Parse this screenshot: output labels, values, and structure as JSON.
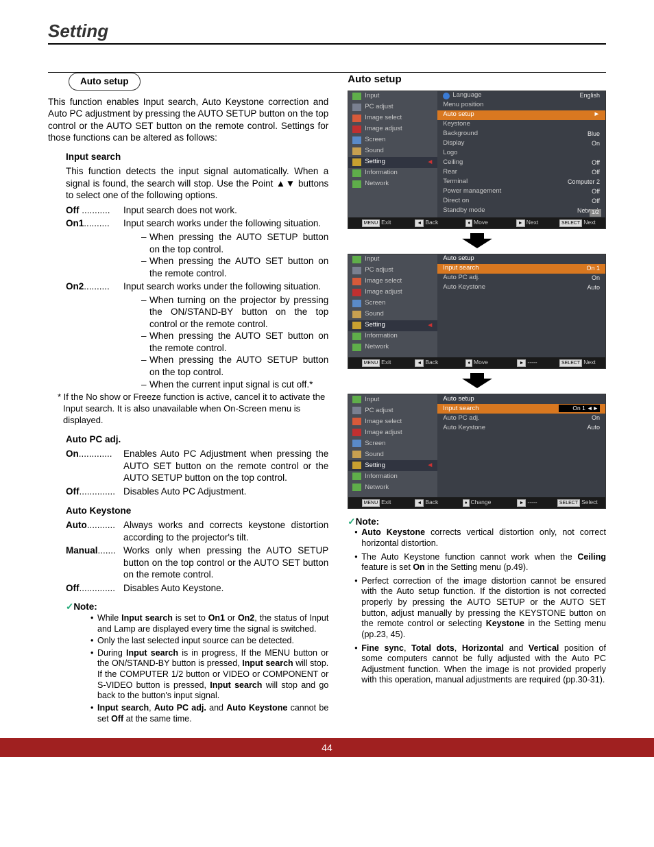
{
  "page": {
    "title": "Setting",
    "number": "44"
  },
  "left": {
    "pill": "Auto setup",
    "intro": "This function enables Input search, Auto Keystone correction and Auto PC adjustment by pressing the AUTO SETUP button on the top control or the AUTO SET button on the remote control. Settings for those functions can be altered as follows:",
    "input_search": {
      "head": "Input search",
      "desc": "This function detects the input signal automatically. When a signal is found, the search will stop. Use the Point ▲▼ buttons to select one of the following options.",
      "off_label": "Off",
      "off_dots": " ...........",
      "off_desc": "Input search does not work.",
      "on1_label": "On1",
      "on1_dots": "..........",
      "on1_desc": "Input search works under the following situation.",
      "on1_subs": [
        "When pressing the AUTO SETUP button on the top control.",
        "When pressing the AUTO SET button on the remote control."
      ],
      "on2_label": "On2",
      "on2_dots": "..........",
      "on2_desc": "Input search works under the following situation.",
      "on2_subs": [
        "When turning on the projector by pressing the ON/STAND-BY button on the top control or the remote control.",
        "When pressing the AUTO SET button on the remote control.",
        "When pressing the AUTO SETUP button on the top control.",
        " When the current input signal is cut off.*"
      ],
      "footnote": "* If the No show or Freeze function is active, cancel it to activate the Input search. It is also unavailable when On-Screen menu is displayed."
    },
    "autopc": {
      "head": "Auto PC adj.",
      "on_label": "On",
      "on_dots": ".............",
      "on_desc": "Enables Auto PC Adjustment when pressing the AUTO SET button on the remote control or the AUTO SETUP button on the top control.",
      "off_label": "Off",
      "off_dots": "..............",
      "off_desc": "Disables Auto PC Adjustment."
    },
    "autoks": {
      "head": "Auto Keystone",
      "auto_label": "Auto",
      "auto_dots": "...........",
      "auto_desc": "Always works and corrects keystone distortion according to the projector's tilt.",
      "man_label": "Manual",
      "man_dots": ".......",
      "man_desc": "Works only when pressing the AUTO SETUP button on the top control or the AUTO SET button on the remote control.",
      "off_label": "Off",
      "off_dots": "..............",
      "off_desc": "Disables Auto Keystone."
    },
    "note": {
      "head": "Note:",
      "items_html": [
        "While <b>Input search</b> is set to <b>On1</b> or <b>On2</b>, the status of Input and Lamp are displayed every time the signal is switched.",
        "Only the last selected input source can be detected.",
        "During <b>Input search</b> is in progress, If the MENU button or the ON/STAND-BY button is pressed, <b>Input search</b> will stop. If the COMPUTER 1/2 button or VIDEO or COMPONENT or S-VIDEO button is pressed, <b>Input search</b> will stop and go back to the button's input signal.",
        "<b>Input search</b>, <b>Auto PC adj.</b> and <b>Auto Keystone</b> cannot be set <b>Off</b> at the same time."
      ]
    }
  },
  "right": {
    "title": "Auto setup",
    "side_items": [
      "Input",
      "PC adjust",
      "Image select",
      "Image adjust",
      "Screen",
      "Sound",
      "Setting",
      "Information",
      "Network"
    ],
    "side_colors": [
      "#5fae4a",
      "#7a8090",
      "#d85a3a",
      "#c03030",
      "#5a8ac8",
      "#c8a050",
      "#c8a030",
      "#5fae4a",
      "#5fae4a"
    ],
    "osd1": {
      "rows": [
        {
          "l": "Language",
          "v": "English",
          "globe": true
        },
        {
          "l": "Menu position",
          "v": ""
        },
        {
          "l": "Auto setup",
          "v": "",
          "hi": true,
          "tri": true
        },
        {
          "l": "Keystone",
          "v": ""
        },
        {
          "l": "Background",
          "v": "Blue"
        },
        {
          "l": "Display",
          "v": "On"
        },
        {
          "l": "Logo",
          "v": ""
        },
        {
          "l": "Ceiling",
          "v": "Off"
        },
        {
          "l": "Rear",
          "v": "Off"
        },
        {
          "l": "Terminal",
          "v": "Computer 2"
        },
        {
          "l": "Power management",
          "v": "Off"
        },
        {
          "l": "Direct on",
          "v": "Off"
        },
        {
          "l": "Standby mode",
          "v": "Network"
        }
      ],
      "page_ind": "1/2",
      "foot": [
        "Exit",
        "Back",
        "Move",
        "Next",
        "Next"
      ],
      "foot_box": [
        "MENU",
        "◄",
        "♦",
        "►",
        "SELECT"
      ]
    },
    "osd2": {
      "title": "Auto setup",
      "rows": [
        {
          "l": "Input search",
          "v": "On 1",
          "hi": true
        },
        {
          "l": "Auto PC adj.",
          "v": "On"
        },
        {
          "l": "Auto Keystone",
          "v": "Auto"
        }
      ],
      "foot": [
        "Exit",
        "Back",
        "Move",
        "-----",
        "Next"
      ],
      "foot_box": [
        "MENU",
        "◄",
        "♦",
        "►",
        "SELECT"
      ]
    },
    "osd3": {
      "title": "Auto setup",
      "rows": [
        {
          "l": "Input search",
          "v": "On 1",
          "hi2": true,
          "arrows": true
        },
        {
          "l": "Auto PC adj.",
          "v": "On"
        },
        {
          "l": "Auto Keystone",
          "v": "Auto"
        }
      ],
      "foot": [
        "Exit",
        "Back",
        "Change",
        "-----",
        "Select"
      ],
      "foot_box": [
        "MENU",
        "◄",
        "♦",
        "►",
        "SELECT"
      ]
    },
    "note": {
      "head": "Note:",
      "items_html": [
        "<b>Auto Keystone</b> corrects vertical distortion only, not correct horizontal distortion.",
        "The Auto Keystone function cannot work when the <b>Ceiling</b> feature is set <b>On</b> in the Setting menu (p.49).",
        "Perfect correction of the image distortion cannot be ensured with the Auto setup function. If the distortion is not corrected properly by pressing the AUTO SETUP or the AUTO SET button, adjust manually by pressing the KEYSTONE button on the remote control or selecting <b>Keystone</b> in the Setting menu (pp.23, 45).",
        "<b>Fine sync</b>, <b>Total dots</b>, <b>Horizontal</b> and <b>Vertical</b> position of some computers cannot be fully adjusted with the Auto PC Adjustment function. When the image is not provided properly with this operation, manual adjustments are required (pp.30-31)."
      ]
    }
  }
}
